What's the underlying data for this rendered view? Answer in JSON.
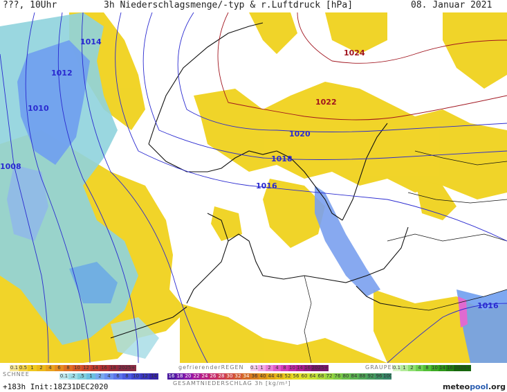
{
  "header": {
    "location": "???, 10Uhr",
    "title": "3h Niederschlagsmenge/-typ & r.Luftdruck [hPa]",
    "date": "08. Januar 2021"
  },
  "isobars": [
    {
      "label": "1024",
      "color": "#a0141e"
    },
    {
      "label": "1022",
      "color": "#a0141e"
    },
    {
      "label": "1020",
      "color": "#2a2ad0"
    },
    {
      "label": "1018",
      "color": "#2a2ad0"
    },
    {
      "label": "1016",
      "color": "#2a2ad0"
    },
    {
      "label": "1016",
      "color": "#2a2ad0"
    },
    {
      "label": "1014",
      "color": "#2a2ad0"
    },
    {
      "label": "1012",
      "color": "#2a2ad0"
    },
    {
      "label": "1010",
      "color": "#2a2ad0"
    },
    {
      "label": "1008",
      "color": "#2a2ad0"
    }
  ],
  "legend": {
    "rain_values": [
      "0.1",
      "0.5",
      "1",
      "2",
      "4",
      "6",
      "8",
      "10",
      "12",
      "14",
      "16",
      "18",
      "2025+"
    ],
    "freezing_label": "gefrierenderREGEN",
    "freezing_values": [
      "0.1",
      "1",
      "2",
      "4",
      "8",
      "10",
      "14",
      "16",
      "2025+"
    ],
    "graupel_label": "GRAUPEL",
    "graupel_values": [
      "0.1",
      "1",
      "2",
      "4",
      "8",
      "10",
      "14",
      "16",
      "2025+"
    ],
    "snow_label": "SCHNEE",
    "snow_values": [
      "0.1",
      ".2",
      ".5",
      "1",
      "2",
      "4",
      "6",
      "8",
      "10",
      "12",
      "14"
    ],
    "total_values": [
      "16",
      "18",
      "20",
      "22",
      "24",
      "26",
      "28",
      "30",
      "32",
      "34",
      "36",
      "40",
      "44",
      "48",
      "52",
      "56",
      "60",
      "64",
      "68",
      "72",
      "76",
      "80",
      "84",
      "88",
      "92",
      "96",
      "100"
    ],
    "total_label": "GESAMTNIEDERSCHLAG 3h [kg/m²]",
    "init": "+183h  Init:18Z31DEC2020",
    "logo_a": "meteo",
    "logo_b": "pool",
    "logo_c": ".org"
  },
  "colors": {
    "rain": [
      "#f7e89a",
      "#f3d34a",
      "#efc81e",
      "#ecb91a",
      "#e9a21c",
      "#e58a1e",
      "#df6f22",
      "#d85a26",
      "#cf4a2a",
      "#c03c2e",
      "#b03034",
      "#9c2a3a",
      "#8a2a44"
    ],
    "freezing": [
      "#f9d0f0",
      "#f2a8e4",
      "#ea80d6",
      "#e05ac8",
      "#d43cb8",
      "#c42aa6",
      "#b01e92",
      "#961a80",
      "#7a166c"
    ],
    "graupel": [
      "#d6f5c8",
      "#b3eb9a",
      "#8fdf72",
      "#6ed050",
      "#52bf36",
      "#3dab24",
      "#2d9618",
      "#217e12",
      "#17660c"
    ],
    "snow": [
      "#bfe9ee",
      "#9edde6",
      "#7fcfdd",
      "#6bbfe0",
      "#78a8ee",
      "#6a8ff0",
      "#5b74ea",
      "#4c5ce0",
      "#4048d0",
      "#3a36bc",
      "#3424a8"
    ],
    "total": [
      "#4b1aa0",
      "#6a1aa8",
      "#8a1aa8",
      "#a61a9a",
      "#b82284",
      "#c42c6c",
      "#cc3a56",
      "#d04a42",
      "#d25a34",
      "#d46c28",
      "#d87e1e",
      "#dc9218",
      "#e0a618",
      "#e4ba18",
      "#e6cc1c",
      "#e6dc24",
      "#dce22c",
      "#c8e234",
      "#b0dc3a",
      "#98d640",
      "#80cc46",
      "#6cc04c",
      "#5cb452",
      "#50a858",
      "#469c5e",
      "#3e9064",
      "#36866a"
    ]
  }
}
